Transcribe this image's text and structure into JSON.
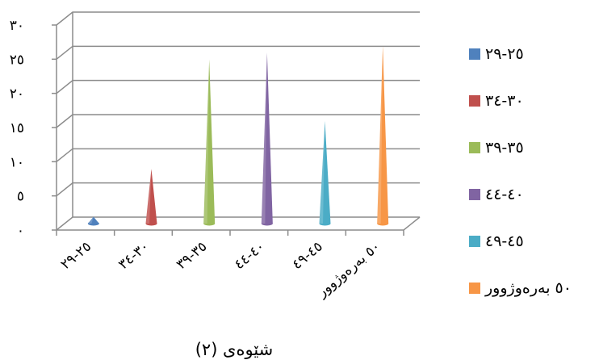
{
  "chart_data": {
    "type": "bar",
    "style": "3d-cone",
    "title": "",
    "caption": "شێوەی (٢)",
    "ylim": [
      0,
      30
    ],
    "yticks": [
      {
        "value": 0,
        "label": "٠"
      },
      {
        "value": 5,
        "label": "٥"
      },
      {
        "value": 10,
        "label": "١٠"
      },
      {
        "value": 15,
        "label": "١٥"
      },
      {
        "value": 20,
        "label": "٢٠"
      },
      {
        "value": 25,
        "label": "٢٥"
      },
      {
        "value": 30,
        "label": "٣٠"
      }
    ],
    "grid": true,
    "legend_position": "right",
    "categories": [
      "٢٥-٢٩",
      "٣٠-٣٤",
      "٣٥-٣٩",
      "٤٠-٤٤",
      "٤٥-٤٩",
      "٥٠ بەرەوژوور"
    ],
    "values": [
      1,
      8,
      24,
      25,
      15,
      26
    ],
    "colors": [
      "#4F81BD",
      "#C0504D",
      "#9BBB59",
      "#8064A2",
      "#4BACC6",
      "#F79646"
    ]
  }
}
